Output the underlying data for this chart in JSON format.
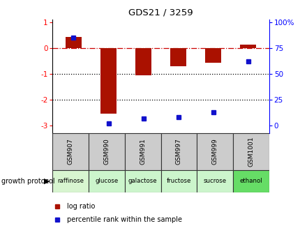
{
  "title": "GDS21 / 3259",
  "samples": [
    "GSM907",
    "GSM990",
    "GSM991",
    "GSM997",
    "GSM999",
    "GSM1001"
  ],
  "protocols": [
    "raffinose",
    "glucose",
    "galactose",
    "fructose",
    "sucrose",
    "ethanol"
  ],
  "log_ratios": [
    0.42,
    -2.55,
    -1.05,
    -0.72,
    -0.58,
    0.13
  ],
  "percentile_ranks": [
    85,
    2,
    7,
    8,
    13,
    62
  ],
  "bar_color": "#AA1100",
  "dot_color": "#1111CC",
  "dashed_line_color": "#CC0000",
  "dotted_line_color": "#000000",
  "left_yticks": [
    1,
    0,
    -1,
    -2,
    -3
  ],
  "right_yticks": [
    100,
    75,
    50,
    25,
    0
  ],
  "ylim_left": [
    -3.3,
    1.1
  ],
  "ylim_right": [
    -3.3,
    1.1
  ],
  "protocol_colors": [
    "#d8f5d0",
    "#ccf5cc",
    "#ccf5cc",
    "#ccf5cc",
    "#ccf5cc",
    "#66dd66"
  ],
  "gsm_bg_color": "#cccccc",
  "legend_log_ratio_color": "#AA1100",
  "legend_percentile_color": "#1111CC",
  "fig_width": 4.31,
  "fig_height": 3.27,
  "dpi": 100
}
